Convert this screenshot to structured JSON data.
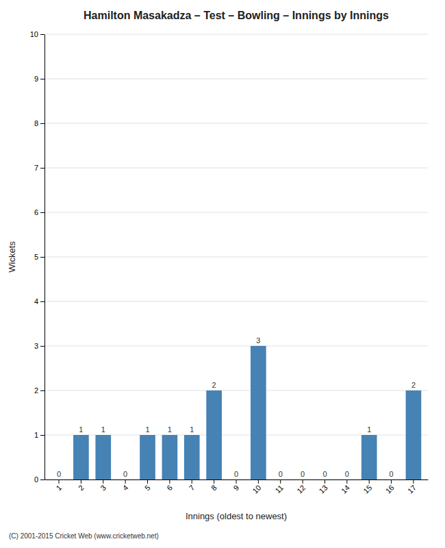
{
  "chart_data": {
    "type": "bar",
    "title": "Hamilton Masakadza – Test – Bowling – Innings by Innings",
    "x_label": "Innings (oldest to newest)",
    "y_label": "Wickets",
    "categories": [
      "1",
      "2",
      "3",
      "4",
      "5",
      "6",
      "7",
      "8",
      "9",
      "10",
      "11",
      "12",
      "13",
      "14",
      "15",
      "16",
      "17"
    ],
    "values": [
      0,
      1,
      1,
      0,
      1,
      1,
      1,
      2,
      0,
      3,
      0,
      0,
      0,
      0,
      1,
      0,
      2
    ],
    "ylim": [
      0,
      10
    ],
    "yticks": [
      0,
      1,
      2,
      3,
      4,
      5,
      6,
      7,
      8,
      9,
      10
    ],
    "grid": true,
    "data_labels": true,
    "footer": "(C) 2001-2015 Cricket Web (www.cricketweb.net)"
  }
}
